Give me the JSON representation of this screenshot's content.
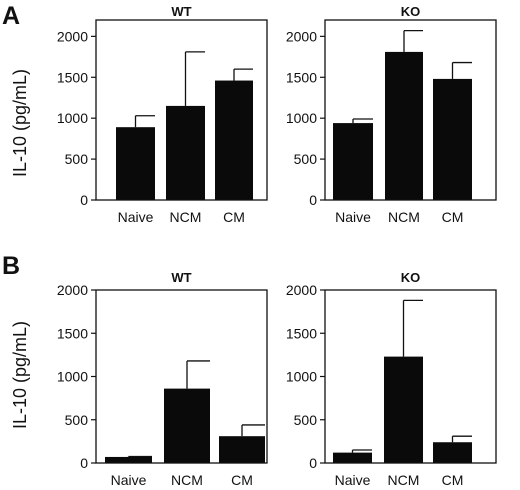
{
  "panels": [
    {
      "letter": "A",
      "ylabel": "IL-10 (pg/mL)"
    },
    {
      "letter": "B",
      "ylabel": "IL-10 (pg/mL)"
    }
  ],
  "chart_data": [
    {
      "type": "bar",
      "panel": "A",
      "title": "WT",
      "categories": [
        "Naive",
        "NCM",
        "CM"
      ],
      "values": [
        890,
        1150,
        1460
      ],
      "error_upper": [
        1030,
        1810,
        1600
      ],
      "ylim": [
        0,
        2200
      ],
      "yticks": [
        0,
        500,
        1000,
        1500,
        2000
      ],
      "ylabel": "IL-10 (pg/mL)",
      "xlabel": "",
      "grid": false
    },
    {
      "type": "bar",
      "panel": "A",
      "title": "KO",
      "categories": [
        "Naive",
        "NCM",
        "CM"
      ],
      "values": [
        940,
        1810,
        1480
      ],
      "error_upper": [
        990,
        2070,
        1680
      ],
      "ylim": [
        0,
        2200
      ],
      "yticks": [
        0,
        500,
        1000,
        1500,
        2000
      ],
      "xlabel": "",
      "grid": false
    },
    {
      "type": "bar",
      "panel": "B",
      "title": "WT",
      "categories": [
        "Naive",
        "NCM",
        "CM"
      ],
      "values": [
        70,
        860,
        310
      ],
      "error_upper": [
        75,
        1180,
        440
      ],
      "ylim": [
        0,
        2000
      ],
      "yticks": [
        0,
        500,
        1000,
        1500,
        2000
      ],
      "ylabel": "IL-10 (pg/mL)",
      "xlabel": "",
      "grid": false
    },
    {
      "type": "bar",
      "panel": "B",
      "title": "KO",
      "categories": [
        "Naive",
        "NCM",
        "CM"
      ],
      "values": [
        120,
        1230,
        240
      ],
      "error_upper": [
        150,
        1880,
        310
      ],
      "ylim": [
        0,
        2000
      ],
      "yticks": [
        0,
        500,
        1000,
        1500,
        2000
      ],
      "xlabel": "",
      "grid": false
    }
  ]
}
